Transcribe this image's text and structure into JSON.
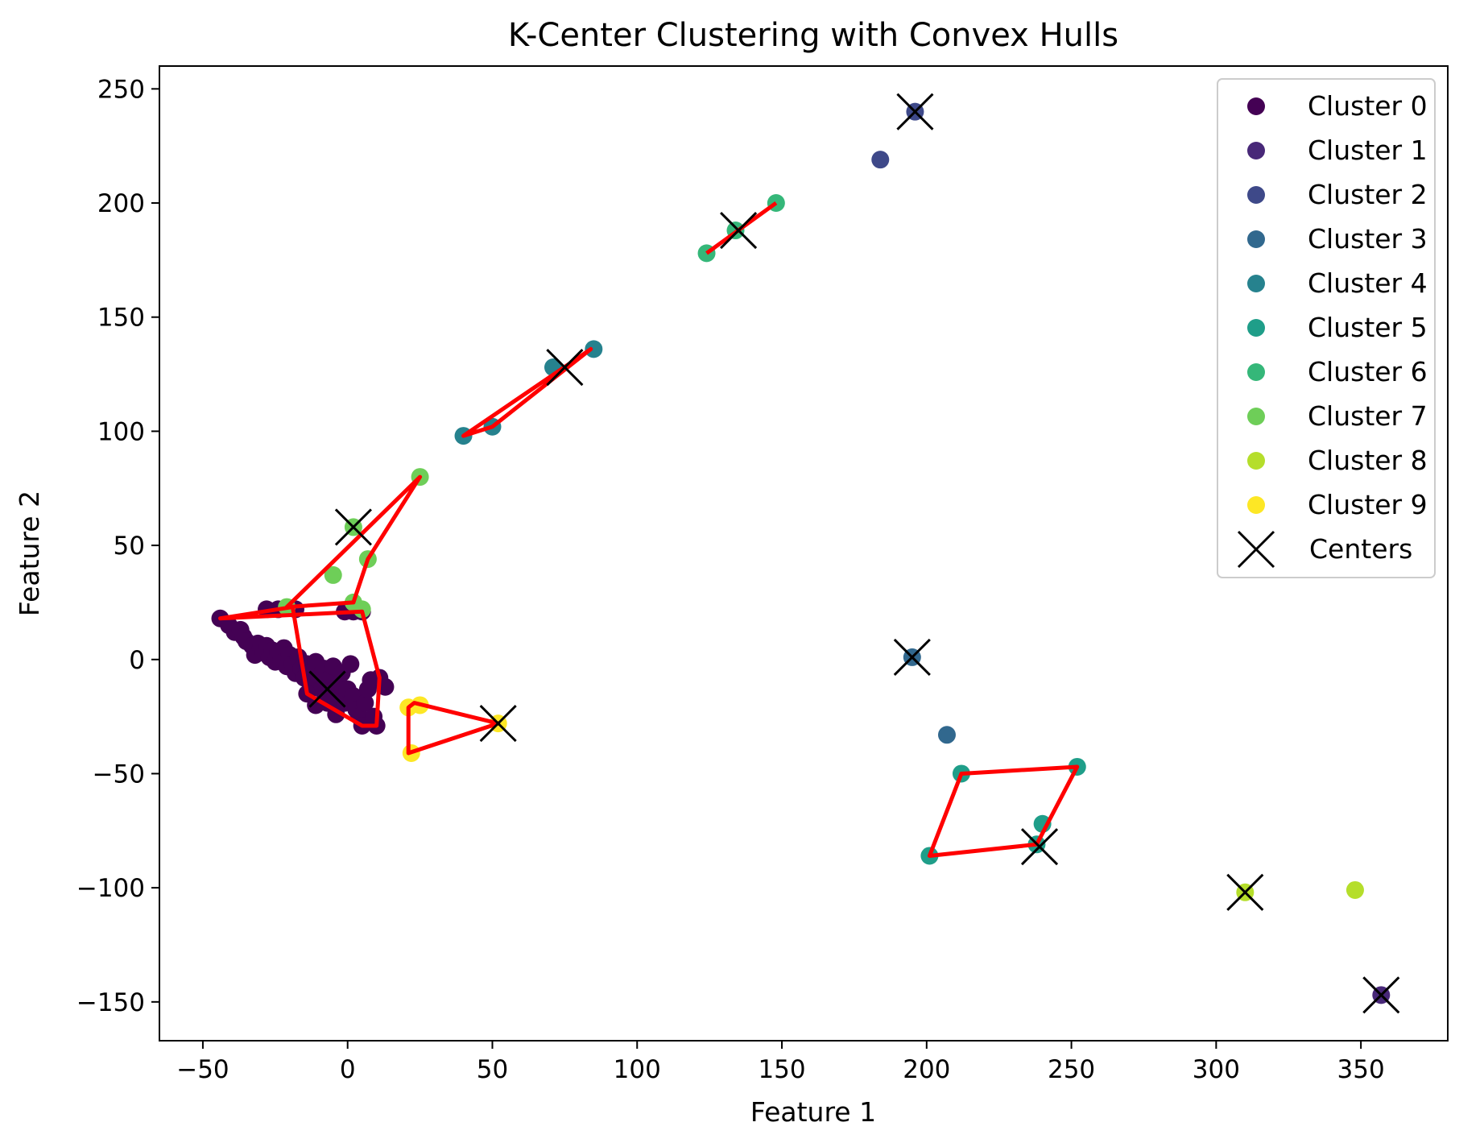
{
  "chart_data": {
    "type": "scatter",
    "title": "K-Center Clustering with Convex Hulls",
    "xlabel": "Feature 1",
    "ylabel": "Feature 2",
    "xlim": [
      -65,
      380
    ],
    "ylim": [
      -167,
      260
    ],
    "xticks": [
      -50,
      0,
      50,
      100,
      150,
      200,
      250,
      300,
      350
    ],
    "yticks": [
      -150,
      -100,
      -50,
      0,
      50,
      100,
      150,
      200,
      250
    ],
    "grid": false,
    "legend_position": "top-right",
    "hull_color": "#ff0000",
    "center_color": "#000000",
    "series": [
      {
        "name": "Cluster 0",
        "color": "#440154",
        "points": [
          [
            -44,
            18
          ],
          [
            -41,
            15
          ],
          [
            -39,
            12
          ],
          [
            -37,
            13
          ],
          [
            -36,
            10
          ],
          [
            -35,
            8
          ],
          [
            -33,
            6
          ],
          [
            -32,
            2
          ],
          [
            -31,
            7
          ],
          [
            -30,
            5
          ],
          [
            -29,
            3
          ],
          [
            -28,
            6
          ],
          [
            -27,
            1
          ],
          [
            -26,
            4
          ],
          [
            -25,
            -1
          ],
          [
            -24,
            3
          ],
          [
            -23,
            0
          ],
          [
            -22,
            5
          ],
          [
            -21,
            -3
          ],
          [
            -20,
            2
          ],
          [
            -19,
            -2
          ],
          [
            -18,
            -6
          ],
          [
            -17,
            1
          ],
          [
            -16,
            -4
          ],
          [
            -15,
            -8
          ],
          [
            -14,
            -2
          ],
          [
            -13,
            -10
          ],
          [
            -12,
            -5
          ],
          [
            -11,
            -1
          ],
          [
            -10,
            -7
          ],
          [
            -9,
            -13
          ],
          [
            -8,
            -4
          ],
          [
            -7,
            -9
          ],
          [
            -6,
            -14
          ],
          [
            -5,
            -3
          ],
          [
            -4,
            -17
          ],
          [
            -3,
            -11
          ],
          [
            -2,
            -6
          ],
          [
            -1,
            -19
          ],
          [
            0,
            -13
          ],
          [
            1,
            -2
          ],
          [
            2,
            -16
          ],
          [
            3,
            -22
          ],
          [
            4,
            -25
          ],
          [
            5,
            -29
          ],
          [
            6,
            -19
          ],
          [
            7,
            -13
          ],
          [
            8,
            -9
          ],
          [
            9,
            -25
          ],
          [
            10,
            -29
          ],
          [
            11,
            -8
          ],
          [
            13,
            -12
          ],
          [
            -28,
            22
          ],
          [
            -24,
            22
          ],
          [
            -18,
            22
          ],
          [
            -14,
            -15
          ],
          [
            -11,
            -20
          ],
          [
            -7,
            -19
          ],
          [
            -4,
            -24
          ],
          [
            -1,
            21
          ],
          [
            2,
            21
          ],
          [
            5,
            21
          ]
        ]
      },
      {
        "name": "Cluster 1",
        "color": "#482878",
        "points": [
          [
            357,
            -147
          ]
        ]
      },
      {
        "name": "Cluster 2",
        "color": "#3e4989",
        "points": [
          [
            196,
            240
          ],
          [
            184,
            219
          ]
        ]
      },
      {
        "name": "Cluster 3",
        "color": "#31688e",
        "points": [
          [
            195,
            1
          ],
          [
            207,
            -33
          ]
        ]
      },
      {
        "name": "Cluster 4",
        "color": "#26828e",
        "points": [
          [
            40,
            98
          ],
          [
            50,
            102
          ],
          [
            71,
            128
          ],
          [
            85,
            136
          ]
        ]
      },
      {
        "name": "Cluster 5",
        "color": "#1f9e89",
        "points": [
          [
            212,
            -50
          ],
          [
            252,
            -47
          ],
          [
            240,
            -72
          ],
          [
            238,
            -81
          ],
          [
            201,
            -86
          ]
        ]
      },
      {
        "name": "Cluster 6",
        "color": "#35b779",
        "points": [
          [
            124,
            178
          ],
          [
            134,
            188
          ],
          [
            148,
            200
          ]
        ]
      },
      {
        "name": "Cluster 7",
        "color": "#6ece58",
        "points": [
          [
            25,
            80
          ],
          [
            2,
            58
          ],
          [
            7,
            44
          ],
          [
            -5,
            37
          ],
          [
            2,
            25
          ],
          [
            5,
            22
          ],
          [
            -21,
            23
          ]
        ]
      },
      {
        "name": "Cluster 8",
        "color": "#b5de2b",
        "points": [
          [
            310,
            -102
          ],
          [
            348,
            -101
          ]
        ]
      },
      {
        "name": "Cluster 9",
        "color": "#fde725",
        "points": [
          [
            21,
            -21
          ],
          [
            25,
            -20
          ],
          [
            22,
            -41
          ],
          [
            52,
            -28
          ]
        ]
      }
    ],
    "hulls": [
      [
        [
          -44,
          18
        ],
        [
          -19,
          23
        ],
        [
          -14,
          -15
        ],
        [
          5,
          -29
        ],
        [
          10,
          -29
        ],
        [
          11,
          -8
        ],
        [
          5,
          21
        ]
      ],
      [
        [
          -21,
          23
        ],
        [
          25,
          80
        ],
        [
          7,
          44
        ],
        [
          2,
          25
        ]
      ],
      [
        [
          21,
          -41
        ],
        [
          52,
          -28
        ],
        [
          23,
          -19
        ],
        [
          21,
          -21
        ]
      ],
      [
        [
          40,
          98
        ],
        [
          50,
          102
        ],
        [
          84,
          136
        ],
        [
          40,
          98
        ]
      ],
      [
        [
          124,
          178
        ],
        [
          148,
          200
        ]
      ],
      [
        [
          212,
          -50
        ],
        [
          252,
          -47
        ],
        [
          238,
          -81
        ],
        [
          201,
          -86
        ]
      ]
    ],
    "centers": [
      [
        -7,
        -13
      ],
      [
        357,
        -147
      ],
      [
        196,
        240
      ],
      [
        195,
        1
      ],
      [
        75,
        128
      ],
      [
        239,
        -82
      ],
      [
        135,
        188
      ],
      [
        2,
        58
      ],
      [
        310,
        -102
      ],
      [
        52,
        -28
      ]
    ],
    "centers_label": "Centers"
  }
}
